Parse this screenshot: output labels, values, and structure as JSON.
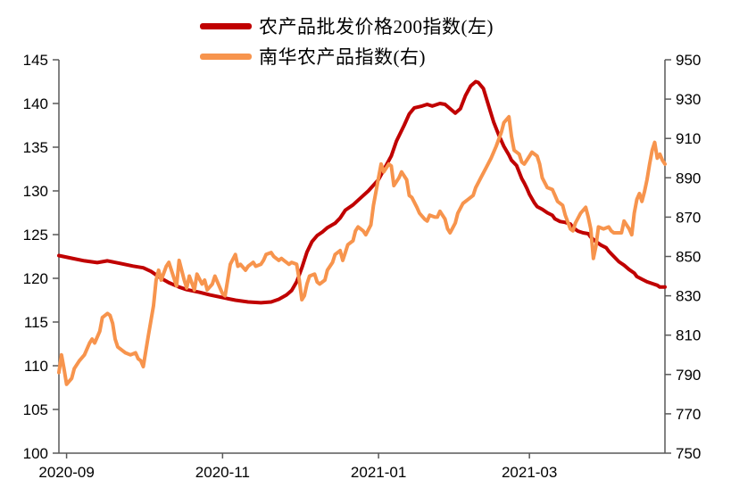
{
  "page": {
    "background": "#ffffff"
  },
  "legend": {
    "items": [
      {
        "label": "农产品批发价格200指数(左)",
        "color": "#C00000"
      },
      {
        "label": "南华农产品指数(右)",
        "color": "#F7944D"
      }
    ]
  },
  "chart_data": {
    "type": "line",
    "title": "",
    "grid": false,
    "legend_position": "top-center",
    "x_axis": {
      "min": "2020-08-29",
      "max": "2021-04-23",
      "ticks": [
        {
          "date": "2020-09-01",
          "label": "2020-09"
        },
        {
          "date": "2020-11-01",
          "label": "2020-11"
        },
        {
          "date": "2021-01-01",
          "label": "2021-01"
        },
        {
          "date": "2021-03-01",
          "label": "2021-03"
        }
      ]
    },
    "y_left": {
      "min": 100,
      "max": 145,
      "ticks": [
        100,
        105,
        110,
        115,
        120,
        125,
        130,
        135,
        140,
        145
      ]
    },
    "y_right": {
      "min": 750,
      "max": 950,
      "ticks": [
        750,
        770,
        790,
        810,
        830,
        850,
        870,
        890,
        910,
        930,
        950
      ]
    },
    "axis_color": "#595959",
    "series": [
      {
        "name": "农产品批发价格200指数(左)",
        "axis": "left",
        "color": "#C00000",
        "width": 4,
        "points": [
          [
            "2020-08-29",
            122.6
          ],
          [
            "2020-09-03",
            122.3
          ],
          [
            "2020-09-08",
            122.0
          ],
          [
            "2020-09-13",
            121.8
          ],
          [
            "2020-09-17",
            122.0
          ],
          [
            "2020-09-22",
            121.7
          ],
          [
            "2020-09-27",
            121.4
          ],
          [
            "2020-10-01",
            121.2
          ],
          [
            "2020-10-04",
            120.8
          ],
          [
            "2020-10-08",
            120.0
          ],
          [
            "2020-10-11",
            119.5
          ],
          [
            "2020-10-15",
            119.0
          ],
          [
            "2020-10-18",
            118.7
          ],
          [
            "2020-10-23",
            118.4
          ],
          [
            "2020-10-27",
            118.1
          ],
          [
            "2020-11-01",
            117.8
          ],
          [
            "2020-11-06",
            117.5
          ],
          [
            "2020-11-11",
            117.3
          ],
          [
            "2020-11-16",
            117.2
          ],
          [
            "2020-11-20",
            117.3
          ],
          [
            "2020-11-23",
            117.6
          ],
          [
            "2020-11-26",
            118.1
          ],
          [
            "2020-11-28",
            118.6
          ],
          [
            "2020-11-30",
            119.6
          ],
          [
            "2020-12-02",
            121.2
          ],
          [
            "2020-12-04",
            123.0
          ],
          [
            "2020-12-06",
            124.2
          ],
          [
            "2020-12-08",
            124.9
          ],
          [
            "2020-12-10",
            125.3
          ],
          [
            "2020-12-12",
            125.8
          ],
          [
            "2020-12-15",
            126.3
          ],
          [
            "2020-12-17",
            126.9
          ],
          [
            "2020-12-19",
            127.8
          ],
          [
            "2020-12-22",
            128.4
          ],
          [
            "2020-12-25",
            129.2
          ],
          [
            "2020-12-28",
            130.0
          ],
          [
            "2021-01-01",
            131.3
          ],
          [
            "2021-01-03",
            132.4
          ],
          [
            "2021-01-06",
            134.0
          ],
          [
            "2021-01-08",
            135.7
          ],
          [
            "2021-01-11",
            137.5
          ],
          [
            "2021-01-13",
            138.8
          ],
          [
            "2021-01-15",
            139.5
          ],
          [
            "2021-01-18",
            139.7
          ],
          [
            "2021-01-20",
            139.9
          ],
          [
            "2021-01-22",
            139.7
          ],
          [
            "2021-01-25",
            140.0
          ],
          [
            "2021-01-27",
            139.9
          ],
          [
            "2021-01-29",
            139.4
          ],
          [
            "2021-01-31",
            138.9
          ],
          [
            "2021-02-02",
            139.4
          ],
          [
            "2021-02-04",
            140.9
          ],
          [
            "2021-02-06",
            142.0
          ],
          [
            "2021-02-08",
            142.5
          ],
          [
            "2021-02-09",
            142.4
          ],
          [
            "2021-02-11",
            141.7
          ],
          [
            "2021-02-13",
            139.8
          ],
          [
            "2021-02-15",
            137.9
          ],
          [
            "2021-02-17",
            136.4
          ],
          [
            "2021-02-19",
            135.1
          ],
          [
            "2021-02-21",
            134.1
          ],
          [
            "2021-02-22",
            133.5
          ],
          [
            "2021-02-24",
            132.9
          ],
          [
            "2021-02-26",
            131.4
          ],
          [
            "2021-02-27",
            130.9
          ],
          [
            "2021-02-28",
            130.3
          ],
          [
            "2021-03-01",
            129.6
          ],
          [
            "2021-03-03",
            128.6
          ],
          [
            "2021-03-04",
            128.2
          ],
          [
            "2021-03-06",
            127.9
          ],
          [
            "2021-03-08",
            127.5
          ],
          [
            "2021-03-10",
            127.2
          ],
          [
            "2021-03-11",
            126.8
          ],
          [
            "2021-03-13",
            126.5
          ],
          [
            "2021-03-15",
            126.4
          ],
          [
            "2021-03-17",
            126.2
          ],
          [
            "2021-03-18",
            125.8
          ],
          [
            "2021-03-20",
            125.4
          ],
          [
            "2021-03-22",
            125.2
          ],
          [
            "2021-03-24",
            125.1
          ],
          [
            "2021-03-25",
            124.7
          ],
          [
            "2021-03-27",
            124.2
          ],
          [
            "2021-03-29",
            123.8
          ],
          [
            "2021-03-31",
            123.5
          ],
          [
            "2021-04-01",
            123.1
          ],
          [
            "2021-04-03",
            122.5
          ],
          [
            "2021-04-05",
            121.9
          ],
          [
            "2021-04-07",
            121.5
          ],
          [
            "2021-04-09",
            121.0
          ],
          [
            "2021-04-11",
            120.6
          ],
          [
            "2021-04-12",
            120.2
          ],
          [
            "2021-04-14",
            119.9
          ],
          [
            "2021-04-16",
            119.6
          ],
          [
            "2021-04-18",
            119.4
          ],
          [
            "2021-04-20",
            119.2
          ],
          [
            "2021-04-21",
            119.0
          ],
          [
            "2021-04-23",
            119.0
          ]
        ]
      },
      {
        "name": "南华农产品指数(右)",
        "axis": "right",
        "color": "#F7944D",
        "width": 4,
        "points": [
          [
            "2020-08-29",
            791
          ],
          [
            "2020-08-30",
            800
          ],
          [
            "2020-08-31",
            793
          ],
          [
            "2020-09-01",
            785
          ],
          [
            "2020-09-03",
            788
          ],
          [
            "2020-09-04",
            793
          ],
          [
            "2020-09-06",
            797
          ],
          [
            "2020-09-08",
            800
          ],
          [
            "2020-09-10",
            806
          ],
          [
            "2020-09-11",
            808
          ],
          [
            "2020-09-12",
            806
          ],
          [
            "2020-09-14",
            812
          ],
          [
            "2020-09-15",
            819
          ],
          [
            "2020-09-17",
            821
          ],
          [
            "2020-09-18",
            820
          ],
          [
            "2020-09-19",
            816
          ],
          [
            "2020-09-20",
            808
          ],
          [
            "2020-09-21",
            804
          ],
          [
            "2020-09-23",
            802
          ],
          [
            "2020-09-24",
            801
          ],
          [
            "2020-09-26",
            800
          ],
          [
            "2020-09-28",
            801
          ],
          [
            "2020-09-29",
            798
          ],
          [
            "2020-09-30",
            797
          ],
          [
            "2020-10-01",
            794
          ],
          [
            "2020-10-03",
            810
          ],
          [
            "2020-10-05",
            825
          ],
          [
            "2020-10-06",
            838
          ],
          [
            "2020-10-07",
            843
          ],
          [
            "2020-10-08",
            838
          ],
          [
            "2020-10-10",
            845
          ],
          [
            "2020-10-11",
            847
          ],
          [
            "2020-10-13",
            839
          ],
          [
            "2020-10-14",
            835
          ],
          [
            "2020-10-15",
            848
          ],
          [
            "2020-10-17",
            838
          ],
          [
            "2020-10-18",
            834
          ],
          [
            "2020-10-19",
            840
          ],
          [
            "2020-10-21",
            833
          ],
          [
            "2020-10-22",
            841
          ],
          [
            "2020-10-24",
            836
          ],
          [
            "2020-10-25",
            838
          ],
          [
            "2020-10-26",
            833
          ],
          [
            "2020-10-28",
            836
          ],
          [
            "2020-10-29",
            840
          ],
          [
            "2020-10-31",
            834
          ],
          [
            "2020-11-01",
            831
          ],
          [
            "2020-11-02",
            830
          ],
          [
            "2020-11-04",
            846
          ],
          [
            "2020-11-06",
            851
          ],
          [
            "2020-11-07",
            845
          ],
          [
            "2020-11-08",
            846
          ],
          [
            "2020-11-10",
            843
          ],
          [
            "2020-11-11",
            845
          ],
          [
            "2020-11-13",
            847
          ],
          [
            "2020-11-14",
            845
          ],
          [
            "2020-11-16",
            846
          ],
          [
            "2020-11-17",
            848
          ],
          [
            "2020-11-18",
            851
          ],
          [
            "2020-11-20",
            852
          ],
          [
            "2020-11-21",
            850
          ],
          [
            "2020-11-23",
            848
          ],
          [
            "2020-11-24",
            849
          ],
          [
            "2020-11-25",
            848
          ],
          [
            "2020-11-27",
            846
          ],
          [
            "2020-11-28",
            847
          ],
          [
            "2020-11-30",
            846
          ],
          [
            "2020-12-01",
            838
          ],
          [
            "2020-12-02",
            828
          ],
          [
            "2020-12-03",
            830
          ],
          [
            "2020-12-04",
            836
          ],
          [
            "2020-12-05",
            840
          ],
          [
            "2020-12-07",
            841
          ],
          [
            "2020-12-08",
            837
          ],
          [
            "2020-12-09",
            836
          ],
          [
            "2020-12-11",
            838
          ],
          [
            "2020-12-12",
            843
          ],
          [
            "2020-12-14",
            847
          ],
          [
            "2020-12-15",
            851
          ],
          [
            "2020-12-17",
            853
          ],
          [
            "2020-12-18",
            848
          ],
          [
            "2020-12-19",
            852
          ],
          [
            "2020-12-20",
            856
          ],
          [
            "2020-12-22",
            858
          ],
          [
            "2020-12-23",
            863
          ],
          [
            "2020-12-24",
            865
          ],
          [
            "2020-12-26",
            863
          ],
          [
            "2020-12-27",
            861
          ],
          [
            "2020-12-29",
            866
          ],
          [
            "2020-12-30",
            876
          ],
          [
            "2021-01-01",
            890
          ],
          [
            "2021-01-02",
            897
          ],
          [
            "2021-01-03",
            893
          ],
          [
            "2021-01-05",
            897
          ],
          [
            "2021-01-06",
            896
          ],
          [
            "2021-01-07",
            886
          ],
          [
            "2021-01-09",
            890
          ],
          [
            "2021-01-10",
            893
          ],
          [
            "2021-01-12",
            889
          ],
          [
            "2021-01-13",
            881
          ],
          [
            "2021-01-14",
            880
          ],
          [
            "2021-01-16",
            875
          ],
          [
            "2021-01-17",
            872
          ],
          [
            "2021-01-19",
            869
          ],
          [
            "2021-01-20",
            868
          ],
          [
            "2021-01-21",
            871
          ],
          [
            "2021-01-23",
            870
          ],
          [
            "2021-01-24",
            870
          ],
          [
            "2021-01-25",
            873
          ],
          [
            "2021-01-27",
            869
          ],
          [
            "2021-01-28",
            864
          ],
          [
            "2021-01-29",
            862
          ],
          [
            "2021-01-31",
            867
          ],
          [
            "2021-02-01",
            872
          ],
          [
            "2021-02-03",
            877
          ],
          [
            "2021-02-05",
            879
          ],
          [
            "2021-02-07",
            881
          ],
          [
            "2021-02-08",
            885
          ],
          [
            "2021-02-10",
            890
          ],
          [
            "2021-02-12",
            895
          ],
          [
            "2021-02-14",
            900
          ],
          [
            "2021-02-16",
            906
          ],
          [
            "2021-02-18",
            913
          ],
          [
            "2021-02-19",
            918
          ],
          [
            "2021-02-21",
            921
          ],
          [
            "2021-02-22",
            911
          ],
          [
            "2021-02-23",
            904
          ],
          [
            "2021-02-25",
            902
          ],
          [
            "2021-02-26",
            898
          ],
          [
            "2021-02-27",
            897
          ],
          [
            "2021-02-28",
            899
          ],
          [
            "2021-03-01",
            901
          ],
          [
            "2021-03-02",
            903
          ],
          [
            "2021-03-04",
            901
          ],
          [
            "2021-03-05",
            897
          ],
          [
            "2021-03-06",
            890
          ],
          [
            "2021-03-08",
            885
          ],
          [
            "2021-03-10",
            884
          ],
          [
            "2021-03-11",
            881
          ],
          [
            "2021-03-12",
            878
          ],
          [
            "2021-03-14",
            876
          ],
          [
            "2021-03-15",
            871
          ],
          [
            "2021-03-17",
            864
          ],
          [
            "2021-03-18",
            863
          ],
          [
            "2021-03-19",
            867
          ],
          [
            "2021-03-21",
            872
          ],
          [
            "2021-03-23",
            875
          ],
          [
            "2021-03-24",
            870
          ],
          [
            "2021-03-25",
            864
          ],
          [
            "2021-03-26",
            849
          ],
          [
            "2021-03-27",
            855
          ],
          [
            "2021-03-28",
            865
          ],
          [
            "2021-03-30",
            864
          ],
          [
            "2021-04-01",
            865
          ],
          [
            "2021-04-02",
            863
          ],
          [
            "2021-04-03",
            862
          ],
          [
            "2021-04-05",
            862
          ],
          [
            "2021-04-06",
            862
          ],
          [
            "2021-04-07",
            868
          ],
          [
            "2021-04-09",
            864
          ],
          [
            "2021-04-10",
            861
          ],
          [
            "2021-04-11",
            872
          ],
          [
            "2021-04-12",
            879
          ],
          [
            "2021-04-13",
            882
          ],
          [
            "2021-04-14",
            878
          ],
          [
            "2021-04-15",
            883
          ],
          [
            "2021-04-16",
            889
          ],
          [
            "2021-04-17",
            897
          ],
          [
            "2021-04-18",
            904
          ],
          [
            "2021-04-19",
            908
          ],
          [
            "2021-04-20",
            900
          ],
          [
            "2021-04-21",
            902
          ],
          [
            "2021-04-22",
            899
          ],
          [
            "2021-04-23",
            897
          ]
        ]
      }
    ]
  }
}
